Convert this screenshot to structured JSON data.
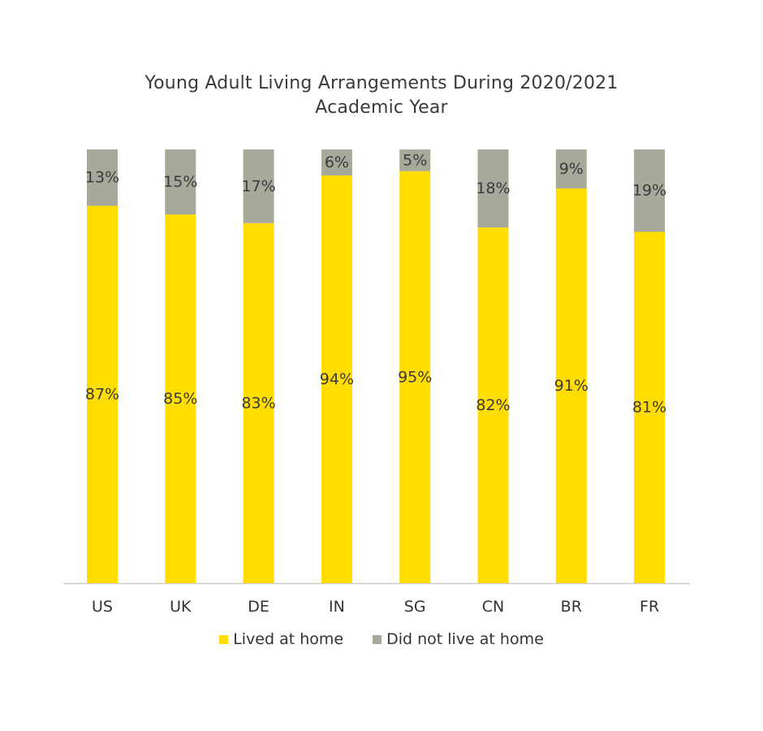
{
  "title_line1": "Young Adult Living Arrangements During 2020/2021",
  "title_line2": "Academic Year",
  "colors": {
    "lived": "#FFDD00",
    "not_lived": "#A9A99B",
    "axis": "#cccccc"
  },
  "chart_data": {
    "type": "bar",
    "stacked": true,
    "title": "Young Adult Living Arrangements During 2020/2021 Academic Year",
    "categories": [
      "US",
      "UK",
      "DE",
      "IN",
      "SG",
      "CN",
      "BR",
      "FR"
    ],
    "series": [
      {
        "name": "Lived at home",
        "values": [
          87,
          85,
          83,
          94,
          95,
          82,
          91,
          81
        ],
        "labels": [
          "87%",
          "85%",
          "83%",
          "94%",
          "95%",
          "82%",
          "91%",
          "81%"
        ]
      },
      {
        "name": "Did not live at home",
        "values": [
          13,
          15,
          17,
          6,
          5,
          18,
          9,
          19
        ],
        "labels": [
          "13%",
          "15%",
          "17%",
          "6%",
          "5%",
          "18%",
          "9%",
          "19%"
        ]
      }
    ],
    "ylim": [
      0,
      100
    ],
    "grid": false,
    "legend": "bottom"
  }
}
